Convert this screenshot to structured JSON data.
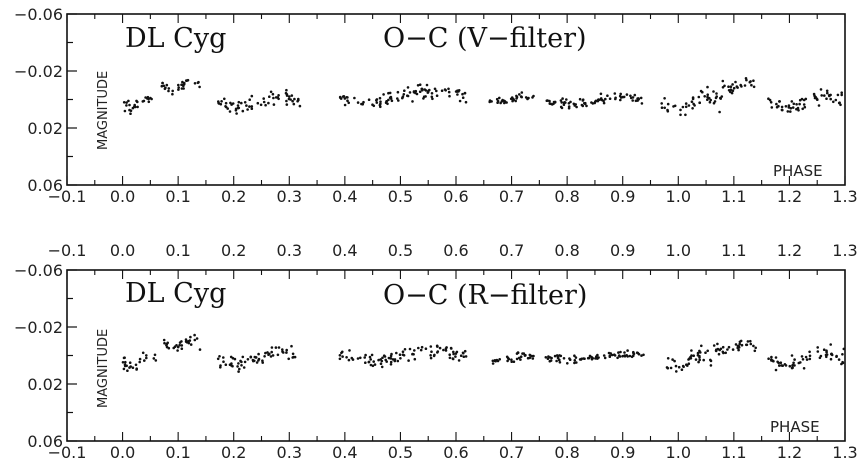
{
  "chart_data": [
    {
      "type": "scatter",
      "title": "DL Cyg",
      "subtitle": "O−C (V−filter)",
      "xlabel": "PHASE",
      "ylabel": "MAGNITUDE",
      "xlim": [
        -0.1,
        1.3
      ],
      "ylim": [
        0.06,
        -0.06
      ],
      "y_inverted": true,
      "x_ticks": [
        "−0.1",
        "0.0",
        "0.1",
        "0.2",
        "0.3",
        "0.4",
        "0.5",
        "0.6",
        "0.7",
        "0.8",
        "0.9",
        "1.0",
        "1.1",
        "1.2",
        "1.3"
      ],
      "y_ticks": [
        "−0.06",
        "−0.02",
        "0.02",
        "0.06"
      ],
      "grid": false,
      "point_color": "#111111",
      "clusters": [
        {
          "x_range": [
            0.0,
            0.06
          ],
          "center": 0.002,
          "spread": 0.007
        },
        {
          "x_range": [
            0.07,
            0.14
          ],
          "center": -0.01,
          "spread": 0.005
        },
        {
          "x_range": [
            0.17,
            0.32
          ],
          "center": 0.002,
          "spread": 0.008
        },
        {
          "x_range": [
            0.39,
            0.62
          ],
          "center": -0.002,
          "spread": 0.007
        },
        {
          "x_range": [
            0.66,
            0.74
          ],
          "center": 0.0,
          "spread": 0.004
        },
        {
          "x_range": [
            0.76,
            0.94
          ],
          "center": 0.001,
          "spread": 0.005
        },
        {
          "x_range": [
            0.97,
            1.08
          ],
          "center": 0.003,
          "spread": 0.009
        },
        {
          "x_range": [
            1.08,
            1.14
          ],
          "center": -0.01,
          "spread": 0.005
        },
        {
          "x_range": [
            1.16,
            1.3
          ],
          "center": 0.002,
          "spread": 0.008
        }
      ]
    },
    {
      "type": "scatter",
      "title": "DL Cyg",
      "subtitle": "O−C (R−filter)",
      "xlabel": "PHASE",
      "ylabel": "MAGNITUDE",
      "xlim": [
        -0.1,
        1.3
      ],
      "ylim": [
        0.06,
        -0.06
      ],
      "y_inverted": true,
      "x_ticks": [
        "−0.1",
        "0.0",
        "0.1",
        "0.2",
        "0.3",
        "0.4",
        "0.5",
        "0.6",
        "0.7",
        "0.8",
        "0.9",
        "1.0",
        "1.1",
        "1.2",
        "1.3"
      ],
      "x_ticks_top": [
        "−0.1",
        "0.0",
        "0.1",
        "0.2",
        "0.3",
        "0.4",
        "0.5",
        "0.6",
        "0.7",
        "0.8",
        "0.9",
        "1.0",
        "1.1",
        "1.2",
        "1.3"
      ],
      "y_ticks": [
        "−0.06",
        "−0.02",
        "0.02",
        "0.06"
      ],
      "grid": false,
      "point_color": "#111111",
      "clusters": [
        {
          "x_range": [
            0.0,
            0.06
          ],
          "center": 0.004,
          "spread": 0.008
        },
        {
          "x_range": [
            0.07,
            0.14
          ],
          "center": -0.008,
          "spread": 0.006
        },
        {
          "x_range": [
            0.17,
            0.32
          ],
          "center": 0.002,
          "spread": 0.008
        },
        {
          "x_range": [
            0.39,
            0.62
          ],
          "center": 0.0,
          "spread": 0.007
        },
        {
          "x_range": [
            0.66,
            0.74
          ],
          "center": 0.002,
          "spread": 0.004
        },
        {
          "x_range": [
            0.76,
            0.94
          ],
          "center": 0.001,
          "spread": 0.004
        },
        {
          "x_range": [
            0.97,
            1.06
          ],
          "center": 0.005,
          "spread": 0.009
        },
        {
          "x_range": [
            1.06,
            1.14
          ],
          "center": -0.006,
          "spread": 0.006
        },
        {
          "x_range": [
            1.16,
            1.3
          ],
          "center": 0.002,
          "spread": 0.008
        }
      ]
    }
  ]
}
